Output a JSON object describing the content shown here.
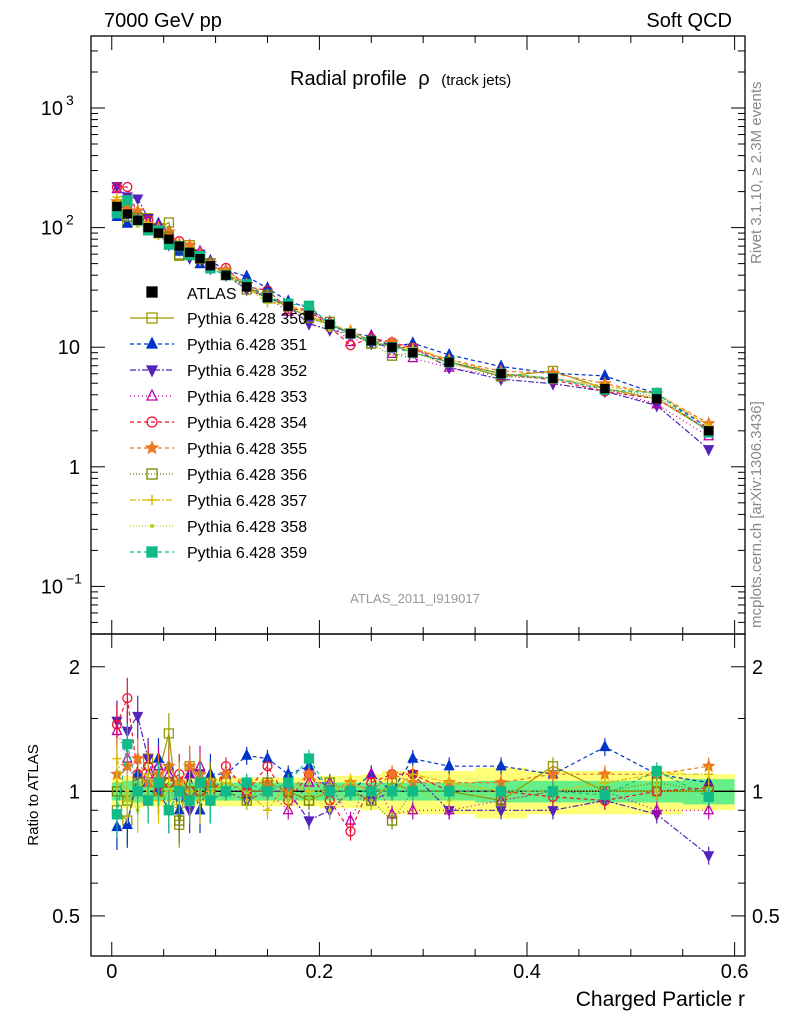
{
  "header": {
    "left": "7000 GeV pp",
    "right": "Soft QCD"
  },
  "side_text": {
    "top": "Rivet 3.1.10, ≥ 2.3M events",
    "bottom": "mcplots.cern.ch [arXiv:1306.3436]"
  },
  "chart_data": {
    "type": "line",
    "title": "Radial profile",
    "title_symbol": "ρ",
    "title_suffix": "(track jets)",
    "watermark": "ATLAS_2011_I919017",
    "xlabel": "Charged Particle r",
    "ylabel_ratio": "Ratio to ATLAS",
    "xlim": [
      -0.02,
      0.61
    ],
    "main": {
      "yscale": "log",
      "ylim": [
        0.04,
        4000
      ],
      "y_ticks": [
        {
          "v": 1000,
          "label": "10",
          "exp": "3"
        },
        {
          "v": 100,
          "label": "10",
          "exp": "2"
        },
        {
          "v": 10,
          "label": "10",
          "exp": ""
        },
        {
          "v": 1,
          "label": "1",
          "exp": ""
        },
        {
          "v": 0.1,
          "label": "10",
          "exp": "−1"
        }
      ]
    },
    "ratio": {
      "yscale": "log",
      "ylim": [
        0.4,
        2.4
      ],
      "y_ticks": [
        {
          "v": 2,
          "label": "2"
        },
        {
          "v": 1,
          "label": "1"
        },
        {
          "v": 0.5,
          "label": "0.5"
        }
      ]
    },
    "x_ticks": [
      {
        "v": 0,
        "label": "0"
      },
      {
        "v": 0.2,
        "label": "0.2"
      },
      {
        "v": 0.4,
        "label": "0.4"
      },
      {
        "v": 0.6,
        "label": "0.6"
      }
    ],
    "legend_position": "middle-left",
    "x": [
      0.005,
      0.015,
      0.025,
      0.035,
      0.045,
      0.055,
      0.065,
      0.075,
      0.085,
      0.095,
      0.11,
      0.13,
      0.15,
      0.17,
      0.19,
      0.21,
      0.23,
      0.25,
      0.27,
      0.29,
      0.325,
      0.375,
      0.425,
      0.475,
      0.525,
      0.575
    ],
    "data": {
      "name": "ATLAS",
      "values": [
        150,
        130,
        115,
        100,
        90,
        80,
        70,
        62,
        55,
        48,
        40,
        32,
        26,
        22,
        18.5,
        15.5,
        13,
        11.3,
        10,
        9,
        7.5,
        6,
        5.5,
        4.5,
        3.7,
        2.0
      ],
      "band_inner": [
        0.05,
        0.06,
        0.06,
        0.05,
        0.05,
        0.05,
        0.05,
        0.05,
        0.05,
        0.05,
        0.05,
        0.05,
        0.05,
        0.05,
        0.05,
        0.05,
        0.05,
        0.05,
        0.05,
        0.05,
        0.05,
        0.06,
        0.06,
        0.06,
        0.06,
        0.07
      ],
      "band_outer": [
        0.08,
        0.09,
        0.09,
        0.08,
        0.08,
        0.08,
        0.08,
        0.08,
        0.08,
        0.08,
        0.08,
        0.08,
        0.08,
        0.08,
        0.08,
        0.09,
        0.09,
        0.1,
        0.12,
        0.12,
        0.12,
        0.14,
        0.12,
        0.12,
        0.12,
        0.1
      ]
    },
    "band_colors": {
      "inner": "#66ee88",
      "outer": "#ffff77"
    },
    "series": [
      {
        "name": "Pythia 6.428 350",
        "color": "#999900",
        "marker": "square-open",
        "dash": "",
        "ratio": [
          0.9,
          0.85,
          1.05,
          1.2,
          1.1,
          1.38,
          0.83,
          1.15,
          1.05,
          1.0,
          1.05,
          1.0,
          1.0,
          1.0,
          0.95,
          1.0,
          1.0,
          0.95,
          1.05,
          1.0,
          1.0,
          0.95,
          1.15,
          1.0,
          1.0,
          1.0
        ]
      },
      {
        "name": "Pythia 6.428 351",
        "color": "#0033cc",
        "marker": "tri-up",
        "dash": "4,3",
        "ratio": [
          0.82,
          0.83,
          1.1,
          1.05,
          1.2,
          1.15,
          0.9,
          1.1,
          0.9,
          1.1,
          1.1,
          1.22,
          1.2,
          1.1,
          1.15,
          1.0,
          1.0,
          1.1,
          1.0,
          1.2,
          1.15,
          1.15,
          1.1,
          1.28,
          1.1,
          1.05
        ]
      },
      {
        "name": "Pythia 6.428 352",
        "color": "#5522bb",
        "marker": "tri-down",
        "dash": "6,2,2,2",
        "ratio": [
          1.48,
          1.4,
          1.52,
          1.2,
          1.0,
          0.9,
          1.0,
          0.9,
          1.1,
          0.95,
          1.0,
          0.95,
          1.0,
          1.0,
          0.85,
          0.9,
          1.0,
          0.95,
          1.0,
          1.1,
          0.9,
          0.9,
          0.9,
          0.95,
          0.88,
          0.7
        ]
      },
      {
        "name": "Pythia 6.428 353",
        "color": "#bb00aa",
        "marker": "tri-up-open",
        "dash": "1,3",
        "ratio": [
          1.4,
          1.2,
          1.0,
          1.1,
          1.15,
          1.1,
          1.0,
          1.1,
          1.15,
          1.05,
          1.0,
          1.0,
          1.0,
          0.9,
          1.05,
          1.05,
          0.85,
          1.1,
          0.88,
          0.9,
          0.9,
          0.95,
          1.0,
          1.0,
          0.9,
          0.9
        ]
      },
      {
        "name": "Pythia 6.428 354",
        "color": "#ee1133",
        "marker": "circle-open",
        "dash": "4,3",
        "ratio": [
          1.45,
          1.68,
          1.1,
          1.15,
          1.0,
          1.05,
          1.1,
          1.0,
          1.0,
          0.95,
          1.15,
          1.0,
          1.15,
          0.95,
          1.1,
          0.95,
          0.8,
          1.05,
          1.1,
          1.1,
          1.0,
          1.0,
          0.97,
          0.95,
          1.0,
          1.02
        ]
      },
      {
        "name": "Pythia 6.428 355",
        "color": "#ee7722",
        "marker": "star",
        "dash": "4,3",
        "ratio": [
          1.1,
          1.15,
          1.2,
          1.05,
          1.1,
          1.15,
          1.05,
          1.15,
          1.1,
          1.05,
          1.1,
          1.05,
          1.05,
          1.0,
          1.1,
          1.0,
          1.05,
          1.0,
          1.1,
          1.05,
          1.05,
          1.05,
          1.1,
          1.1,
          1.1,
          1.15
        ]
      },
      {
        "name": "Pythia 6.428 356",
        "color": "#778800",
        "marker": "square-open",
        "dash": "1,2",
        "ratio": [
          1.0,
          0.95,
          1.05,
          0.95,
          1.0,
          1.05,
          0.85,
          1.0,
          1.0,
          1.05,
          1.0,
          0.95,
          1.05,
          1.0,
          0.95,
          1.05,
          1.0,
          0.95,
          0.85,
          1.0,
          1.0,
          0.95,
          1.0,
          1.0,
          1.05,
          1.0
        ]
      },
      {
        "name": "Pythia 6.428 357",
        "color": "#ddbb00",
        "marker": "dash-x",
        "dash": "6,2,2,2",
        "ratio": [
          1.2,
          0.95,
          1.0,
          1.1,
          0.95,
          1.0,
          1.05,
          1.0,
          0.95,
          1.0,
          1.05,
          1.0,
          0.9,
          1.05,
          1.0,
          1.0,
          1.05,
          1.0,
          1.0,
          1.1,
          1.05,
          1.0,
          1.0,
          1.05,
          1.1,
          1.1
        ]
      },
      {
        "name": "Pythia 6.428 358",
        "color": "#bbcc22",
        "marker": "dot",
        "dash": "1,2",
        "ratio": [
          1.05,
          1.0,
          0.9,
          1.0,
          1.05,
          0.95,
          1.0,
          0.95,
          1.0,
          0.95,
          1.0,
          0.95,
          1.0,
          0.95,
          1.0,
          0.9,
          1.0,
          0.95,
          1.0,
          1.0,
          0.95,
          1.0,
          1.0,
          1.0,
          1.0,
          1.0
        ]
      },
      {
        "name": "Pythia 6.428 359",
        "color": "#11bb88",
        "marker": "square",
        "dash": "4,3",
        "ratio": [
          0.88,
          1.3,
          1.0,
          0.95,
          1.05,
          0.9,
          1.0,
          0.95,
          1.05,
          0.95,
          1.0,
          1.05,
          1.0,
          1.05,
          1.2,
          1.0,
          1.0,
          1.0,
          1.0,
          1.0,
          1.0,
          1.0,
          1.0,
          0.98,
          1.12,
          0.97
        ]
      }
    ]
  }
}
